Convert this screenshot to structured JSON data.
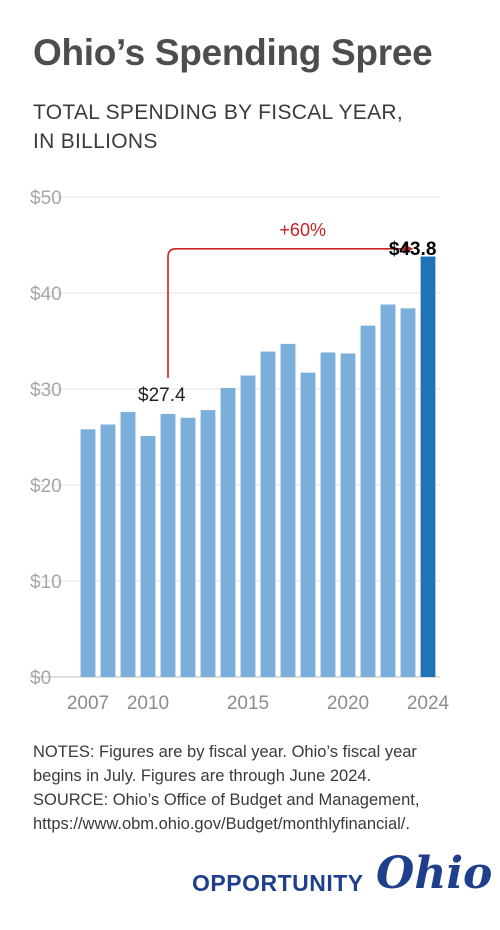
{
  "header": {
    "title": "Ohio’s Spending Spree",
    "subtitle_lines": [
      "TOTAL SPENDING BY FISCAL YEAR,",
      "IN BILLIONS"
    ]
  },
  "chart_data": {
    "type": "bar",
    "categories": [
      "2007",
      "2008",
      "2009",
      "2010",
      "2011",
      "2012",
      "2013",
      "2014",
      "2015",
      "2016",
      "2017",
      "2018",
      "2019",
      "2020",
      "2021",
      "2022",
      "2023",
      "2024"
    ],
    "values": [
      25.8,
      26.3,
      27.6,
      25.1,
      27.4,
      27.0,
      27.8,
      30.1,
      31.4,
      33.9,
      34.7,
      31.7,
      33.8,
      33.7,
      36.6,
      38.8,
      38.4,
      43.8
    ],
    "ylim": [
      0,
      50
    ],
    "yticks": [
      0,
      10,
      20,
      30,
      40,
      50
    ],
    "ytick_labels": [
      "$0",
      "$10",
      "$20",
      "$30",
      "$40",
      "$50"
    ],
    "xtick_labels": [
      "2007",
      "2010",
      "2015",
      "2020",
      "2024"
    ],
    "grid": true,
    "bar_color": "#7aaedb",
    "highlight_color": "#1f74b8",
    "annotations": {
      "start_label": "$27.4",
      "end_label": "$43.8",
      "change_label": "+60%",
      "arrow_color": "#cc2222"
    }
  },
  "notes": {
    "lines": [
      "NOTES: Figures are by fiscal year. Ohio’s fiscal year",
      "begins in July. Figures are through June 2024.",
      "SOURCE: Ohio’s Office of Budget and Management,",
      "https://www.obm.ohio.gov/Budget/monthlyfinancial/."
    ]
  },
  "brand": {
    "word": "OPPORTUNITY",
    "script": "Ohio"
  }
}
